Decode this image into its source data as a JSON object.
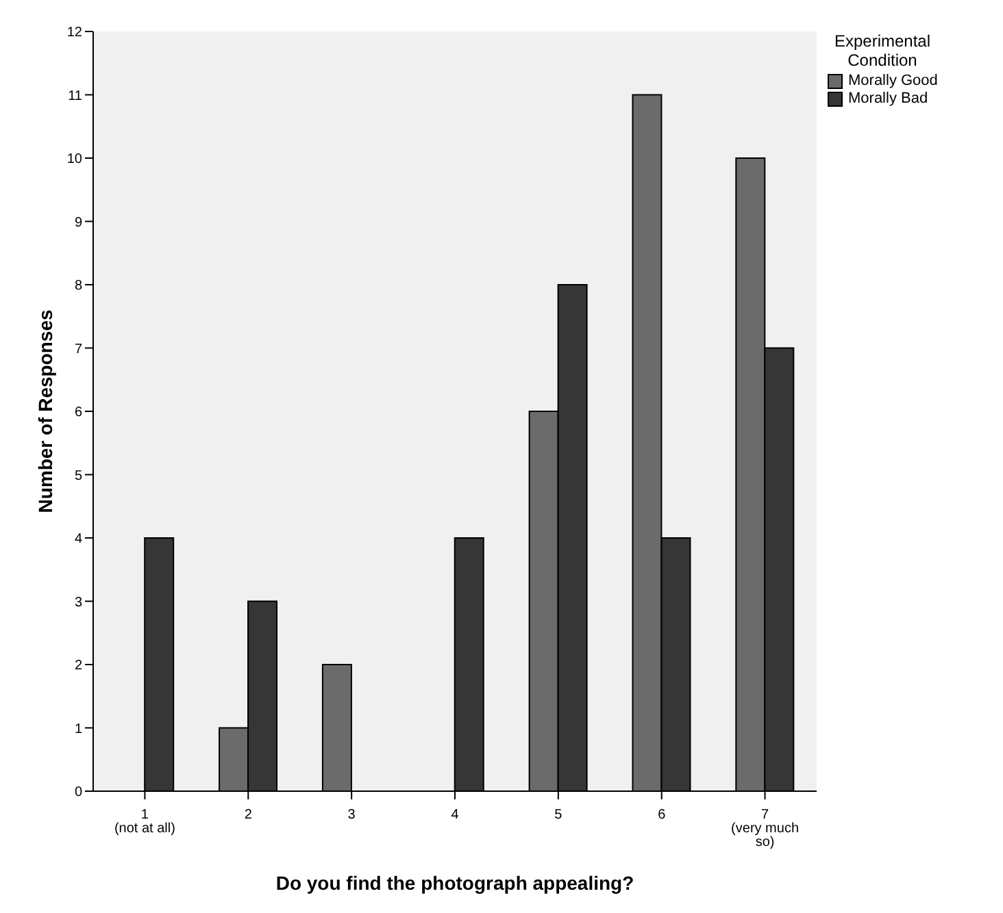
{
  "chart_data": {
    "type": "bar",
    "xlabel": "Do you find the photograph appealing?",
    "ylabel": "Number of Responses",
    "legend_title": "Experimental Condition",
    "categories": [
      "1\n(not at all)",
      "2",
      "3",
      "4",
      "5",
      "6",
      "7\n(very much\nso)"
    ],
    "series": [
      {
        "name": "Morally Good",
        "color": "#6b6b6b",
        "values": [
          0,
          1,
          2,
          0,
          6,
          11,
          10
        ]
      },
      {
        "name": "Morally Bad",
        "color": "#363636",
        "values": [
          4,
          3,
          0,
          4,
          8,
          4,
          7
        ]
      }
    ],
    "ylim": [
      0,
      12
    ],
    "yticks": [
      0,
      1,
      2,
      3,
      4,
      5,
      6,
      7,
      8,
      9,
      10,
      11,
      12
    ],
    "grid": false,
    "legend": "top right"
  }
}
